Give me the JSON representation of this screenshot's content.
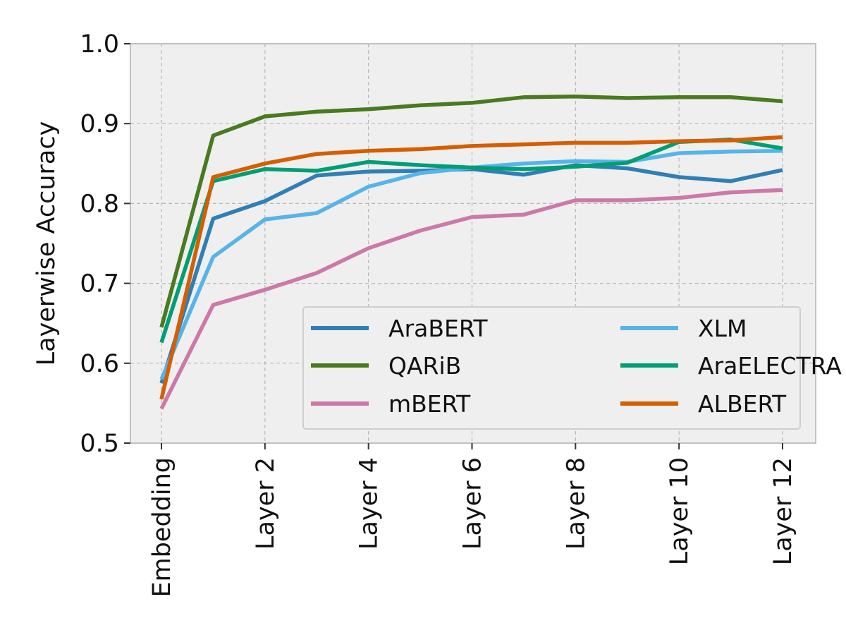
{
  "chart_data": {
    "type": "line",
    "title": "",
    "xlabel": "",
    "ylabel": "Layerwise Accuracy",
    "ylim": [
      0.5,
      1.0
    ],
    "yticks": [
      "0.5",
      "0.6",
      "0.7",
      "0.8",
      "0.9",
      "1.0"
    ],
    "x": [
      0,
      1,
      2,
      3,
      4,
      5,
      6,
      7,
      8,
      9,
      10,
      11,
      12
    ],
    "xticks": [
      {
        "x": 0,
        "label": "Embedding"
      },
      {
        "x": 2,
        "label": "Layer 2"
      },
      {
        "x": 4,
        "label": "Layer 4"
      },
      {
        "x": 6,
        "label": "Layer 6"
      },
      {
        "x": 8,
        "label": "Layer 8"
      },
      {
        "x": 10,
        "label": "Layer 10"
      },
      {
        "x": 12,
        "label": "Layer 12"
      }
    ],
    "grid": true,
    "legend_position": "bottom-right",
    "legend_columns": 2,
    "series": [
      {
        "name": "AraBERT",
        "color": "#2f7fb5",
        "values": [
          0.575,
          0.781,
          0.803,
          0.835,
          0.84,
          0.841,
          0.843,
          0.836,
          0.848,
          0.844,
          0.833,
          0.828,
          0.842
        ]
      },
      {
        "name": "QARiB",
        "color": "#4a7a1f",
        "values": [
          0.645,
          0.885,
          0.909,
          0.915,
          0.918,
          0.923,
          0.926,
          0.933,
          0.934,
          0.932,
          0.933,
          0.933,
          0.928
        ]
      },
      {
        "name": "mBERT",
        "color": "#cc79a7",
        "values": [
          0.543,
          0.673,
          0.692,
          0.713,
          0.744,
          0.766,
          0.783,
          0.786,
          0.804,
          0.804,
          0.807,
          0.814,
          0.817
        ]
      },
      {
        "name": "XLM",
        "color": "#56b4e9",
        "values": [
          0.58,
          0.733,
          0.78,
          0.788,
          0.821,
          0.838,
          0.845,
          0.85,
          0.853,
          0.852,
          0.863,
          0.865,
          0.866
        ]
      },
      {
        "name": "AraELECTRA",
        "color": "#009e73",
        "values": [
          0.626,
          0.828,
          0.843,
          0.841,
          0.852,
          0.848,
          0.845,
          0.843,
          0.846,
          0.851,
          0.877,
          0.88,
          0.869
        ]
      },
      {
        "name": "ALBERT",
        "color": "#d55e00",
        "values": [
          0.555,
          0.833,
          0.85,
          0.862,
          0.866,
          0.868,
          0.872,
          0.874,
          0.876,
          0.876,
          0.878,
          0.879,
          0.883
        ]
      }
    ]
  }
}
